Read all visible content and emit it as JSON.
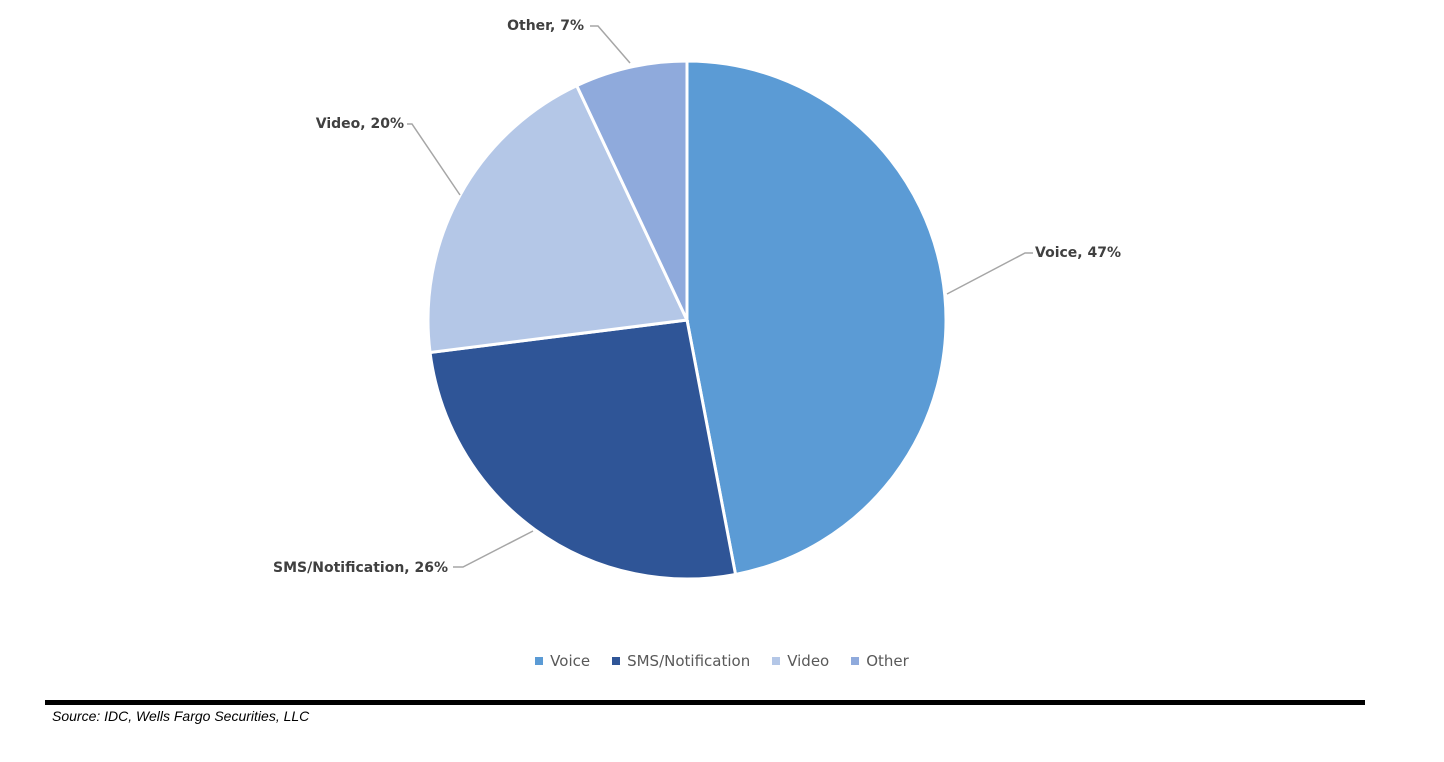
{
  "chart_data": {
    "type": "pie",
    "title": "",
    "slices": [
      {
        "label": "Voice",
        "value": 47,
        "display": "Voice, 47%",
        "color": "#5b9bd5"
      },
      {
        "label": "SMS/Notification",
        "value": 26,
        "display": "SMS/Notification, 26%",
        "color": "#2f5597"
      },
      {
        "label": "Video",
        "value": 20,
        "display": "Video, 20%",
        "color": "#b4c7e7"
      },
      {
        "label": "Other",
        "value": 7,
        "display": "Other, 7%",
        "color": "#8faadc"
      }
    ],
    "legend_placement": "bottom",
    "start_angle": "12 o'clock",
    "direction": "clockwise"
  },
  "footer": {
    "source": "Source: IDC, Wells Fargo Securities, LLC"
  }
}
